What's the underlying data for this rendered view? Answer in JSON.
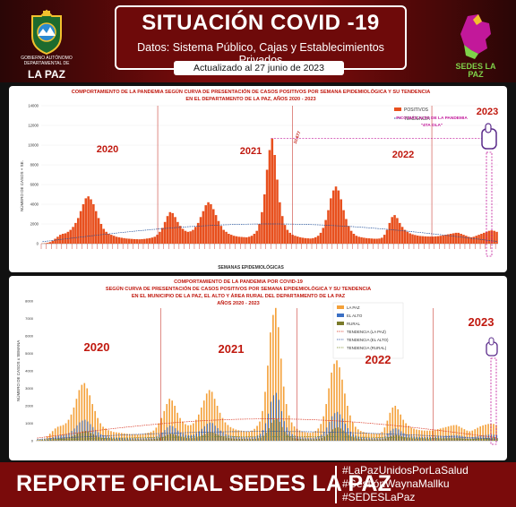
{
  "header": {
    "title": "SITUACIÓN COVID -19",
    "subtitle": "Datos: Sistema Público, Cajas y Establecimientos Privados",
    "updated": "Actualizado   al   27   junio   de   2023",
    "left_logo_caption": "GOBIERNO AUTÓNOMO DEPARTAMENTAL DE",
    "left_logo_place": "LA PAZ",
    "right_logo_text": "SEDES LA PAZ"
  },
  "footer": {
    "title": "REPORTE OFICIAL SEDES LA PAZ",
    "hashtags": [
      "#LaPazUnidosPorLaSalud",
      "#GestiónWaynaMallku",
      "#SEDESLaPaz"
    ]
  },
  "chart_data": [
    {
      "type": "bar",
      "title": "COMPORTAMIENTO DE LA PANDEMIA SEGÚN CURVA DE PRESENTACIÓN DE CASOS POSITIVOS POR SEMANA EPIDEMIOLÓGICA Y SU TENDENCIA",
      "subtitle": "EN EL DEPARTAMENTO DE LA PAZ, AÑOS 2020 - 2023",
      "xlabel": "SEMANAS EPIDEMIOLÓGICAS",
      "ylabel": "NÚMERO DE CASOS + SE.",
      "ylim": [
        0,
        14000
      ],
      "y_ticks": [
        0,
        2000,
        4000,
        6000,
        8000,
        10000,
        12000,
        14000
      ],
      "legend": [
        "POSITIVOS",
        "TENDENCIA"
      ],
      "legend_position": "top-right",
      "year_labels": [
        "2020",
        "2021",
        "2022",
        "2023"
      ],
      "annotation": "PICO MÁS ALTO DE LA PANDEMIA",
      "annotation_sub": "\"4TA OLA\"",
      "peak_value_label": "10.677",
      "colors": {
        "bars": "#e8501e",
        "trend": "#1f4f9a",
        "year": "#c0180e",
        "annotation": "#c2189a"
      },
      "series": [
        {
          "name": "POSITIVOS",
          "values": [
            20,
            40,
            80,
            160,
            300,
            500,
            700,
            900,
            1000,
            1050,
            1200,
            1400,
            1700,
            2100,
            2600,
            3300,
            4000,
            4600,
            4800,
            4500,
            4000,
            3300,
            2600,
            2000,
            1500,
            1200,
            1000,
            900,
            800,
            700,
            650,
            600,
            560,
            520,
            500,
            480,
            460,
            450,
            440,
            460,
            480,
            520,
            560,
            620,
            700,
            900,
            1200,
            1600,
            2200,
            2800,
            3200,
            3100,
            2700,
            2200,
            1800,
            1500,
            1300,
            1200,
            1250,
            1400,
            1700,
            2100,
            2700,
            3300,
            3900,
            4200,
            4000,
            3500,
            2900,
            2300,
            1800,
            1400,
            1200,
            1000,
            900,
            800,
            750,
            700,
            680,
            660,
            640,
            700,
            800,
            1000,
            1300,
            2000,
            3200,
            5000,
            7500,
            9500,
            10677,
            9000,
            6500,
            4200,
            2800,
            1900,
            1400,
            1100,
            900,
            800,
            720,
            650,
            600,
            560,
            540,
            520,
            560,
            650,
            800,
            1100,
            1600,
            2400,
            3400,
            4600,
            5400,
            5800,
            5400,
            4500,
            3400,
            2500,
            1800,
            1300,
            1000,
            800,
            700,
            650,
            600,
            560,
            540,
            520,
            500,
            500,
            520,
            600,
            900,
            1400,
            2100,
            2700,
            2900,
            2600,
            2100,
            1700,
            1400,
            1200,
            1050,
            950,
            880,
            820,
            780,
            760,
            740,
            730,
            720,
            720,
            740,
            760,
            800,
            850,
            900,
            950,
            1000,
            1050,
            1100,
            1100,
            1000,
            900,
            800,
            700,
            650,
            700,
            800,
            900,
            1000,
            1100,
            1200,
            1300,
            1350,
            1300,
            1200
          ]
        }
      ],
      "trend": [
        200,
        2000
      ]
    },
    {
      "type": "bar",
      "title": "COMPORTAMIENTO DE LA PANDEMIA POR COVID-19",
      "subtitle": "SEGÚN CURVA DE PRESENTACIÓN DE CASOS POSITIVOS POR SEMANA EPIDEMIOLÓGICA Y SU TENDENCIA",
      "subtitle2": "EN EL  MUNICIPIO DE LA PAZ, EL ALTO Y ÁREA RURAL DEL DEPARTAMENTO DE LA PAZ",
      "subtitle3": "AÑOS 2020 - 2023",
      "ylabel": "NÚMERO DE CASOS x SEMANA",
      "ylim": [
        0,
        8000
      ],
      "y_ticks": [
        0,
        500,
        1000,
        1500,
        2000,
        2500,
        3000,
        3500,
        4000,
        4500,
        5000,
        5500,
        6000,
        6500,
        7000,
        7500,
        8000
      ],
      "legend": [
        "LA PAZ",
        "EL ALTO",
        "RURAL",
        "TENDENCIA (LA PAZ)",
        "TENDENCIA (EL ALTO)",
        "TENDENCIA (RURAL)"
      ],
      "legend_position": "top-right",
      "year_labels": [
        "2020",
        "2021",
        "2022",
        "2023"
      ],
      "colors": {
        "lapaz": "#f4a13a",
        "elalto": "#3a6fc4",
        "rural": "#7a7a2a",
        "year": "#c0180e",
        "trend_lapaz": "#d9331f",
        "trend_elalto": "#2a4fa0",
        "trend_rural": "#7a8a2a"
      },
      "series": [
        {
          "name": "LA PAZ",
          "values": [
            10,
            30,
            60,
            120,
            250,
            400,
            550,
            700,
            800,
            850,
            900,
            1000,
            1200,
            1500,
            1900,
            2400,
            2900,
            3200,
            3300,
            3000,
            2600,
            2100,
            1700,
            1300,
            1000,
            800,
            700,
            600,
            550,
            500,
            480,
            460,
            440,
            420,
            400,
            390,
            380,
            370,
            360,
            380,
            400,
            430,
            460,
            500,
            580,
            750,
            1000,
            1300,
            1700,
            2100,
            2400,
            2300,
            2000,
            1600,
            1300,
            1100,
            950,
            880,
            900,
            1000,
            1200,
            1500,
            1900,
            2300,
            2700,
            2900,
            2800,
            2400,
            2000,
            1600,
            1300,
            1050,
            900,
            780,
            700,
            640,
            600,
            580,
            560,
            540,
            520,
            580,
            680,
            850,
            1100,
            1700,
            2800,
            4300,
            6200,
            7200,
            7600,
            6500,
            4700,
            3100,
            2100,
            1450,
            1050,
            820,
            680,
            590,
            530,
            490,
            470,
            450,
            480,
            560,
            700,
            960,
            1400,
            2100,
            3000,
            3900,
            4400,
            4600,
            4200,
            3500,
            2700,
            2000,
            1450,
            1050,
            800,
            650,
            560,
            500,
            460,
            440,
            430,
            420,
            410,
            420,
            500,
            760,
            1150,
            1600,
            1900,
            2000,
            1800,
            1500,
            1200,
            1000,
            850,
            760,
            690,
            640,
            610,
            590,
            580,
            575,
            580,
            590,
            620,
            660,
            700,
            740,
            780,
            820,
            860,
            890,
            900,
            820,
            740,
            660,
            580,
            540,
            580,
            660,
            740,
            820,
            880,
            920,
            960,
            980,
            960,
            900
          ]
        },
        {
          "name": "EL ALTO",
          "values": [
            5,
            10,
            20,
            40,
            80,
            140,
            200,
            250,
            300,
            320,
            340,
            380,
            450,
            560,
            700,
            880,
            1050,
            1150,
            1200,
            1100,
            950,
            780,
            620,
            480,
            370,
            300,
            260,
            230,
            210,
            190,
            180,
            170,
            160,
            155,
            150,
            148,
            145,
            142,
            140,
            145,
            150,
            160,
            170,
            185,
            210,
            270,
            360,
            470,
            610,
            760,
            870,
            830,
            720,
            580,
            470,
            400,
            345,
            320,
            325,
            360,
            430,
            540,
            680,
            830,
            970,
            1040,
            1010,
            860,
            720,
            580,
            470,
            380,
            325,
            280,
            250,
            230,
            215,
            208,
            200,
            195,
            188,
            210,
            245,
            305,
            395,
            610,
            1000,
            1550,
            2230,
            2600,
            2740,
            2340,
            1690,
            1120,
            760,
            520,
            380,
            295,
            245,
            212,
            190,
            176,
            170,
            162,
            172,
            200,
            252,
            345,
            505,
            755,
            1080,
            1400,
            1580,
            1650,
            1510,
            1260,
            970,
            720,
            520,
            380,
            288,
            234,
            200,
            180,
            166,
            158,
            154,
            150,
            148,
            150,
            180,
            273,
            414,
            576,
            684,
            720,
            648,
            540,
            432,
            360,
            306,
            274,
            248,
            230,
            220,
            212,
            209,
            207,
            209,
            212,
            223,
            238,
            252,
            266,
            281,
            295,
            310,
            320,
            324,
            295,
            266,
            238,
            209,
            194,
            209,
            238,
            266,
            295,
            317,
            331,
            346,
            353,
            346,
            324
          ]
        },
        {
          "name": "RURAL",
          "values": [
            2,
            5,
            10,
            20,
            40,
            70,
            100,
            120,
            140,
            150,
            160,
            180,
            210,
            260,
            330,
            410,
            490,
            540,
            560,
            510,
            440,
            370,
            290,
            220,
            170,
            140,
            120,
            110,
            100,
            90,
            85,
            80,
            76,
            72,
            70,
            68,
            66,
            64,
            62,
            65,
            68,
            72,
            78,
            85,
            98,
            125,
            165,
            215,
            280,
            350,
            400,
            385,
            335,
            270,
            220,
            185,
            160,
            148,
            150,
            166,
            200,
            250,
            315,
            385,
            450,
            485,
            470,
            400,
            335,
            270,
            218,
            178,
            152,
            130,
            117,
            107,
            100,
            97,
            93,
            90,
            87,
            97,
            113,
            140,
            182,
            282,
            462,
            720,
            1030,
            1200,
            1260,
            1080,
            780,
            520,
            350,
            240,
            176,
            136,
            113,
            98,
            88,
            82,
            78,
            75,
            80,
            93,
            117,
            160,
            234,
            350,
            500,
            650,
            730,
            765,
            700,
            583,
            450,
            333,
            240,
            176,
            133,
            108,
            93,
            83,
            77,
            73,
            71,
            70,
            68,
            70,
            83,
            126,
            192,
            266,
            316,
            333,
            300,
            250,
            200,
            166,
            141,
            127,
            115,
            106,
            101,
            98,
            97,
            96,
            97,
            98,
            103,
            110,
            116,
            123,
            130,
            137,
            143,
            148,
            150,
            137,
            123,
            110,
            97,
            90,
            97,
            110,
            123,
            137,
            147,
            153,
            160,
            163,
            160,
            150
          ]
        }
      ]
    }
  ]
}
